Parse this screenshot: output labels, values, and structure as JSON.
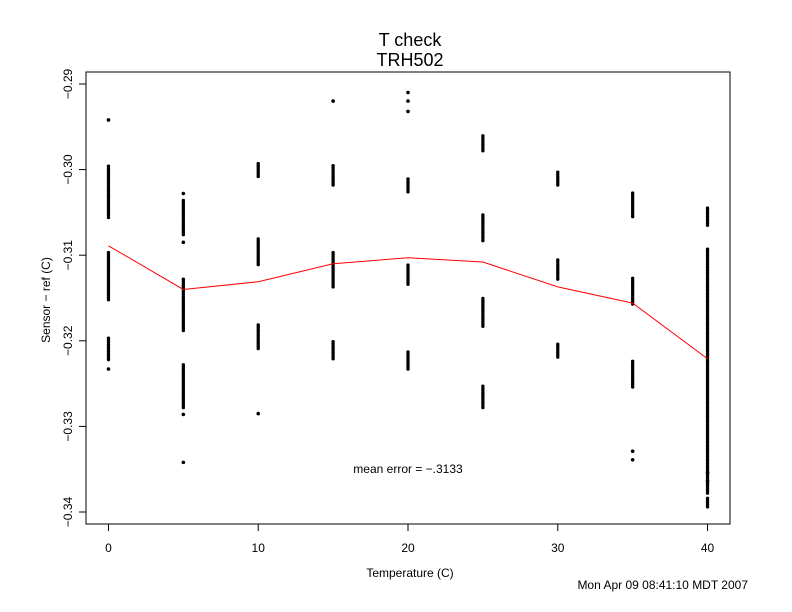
{
  "chart_data": {
    "type": "scatter",
    "title": "T check",
    "subtitle": "TRH502",
    "xlabel": "Temperature (C)",
    "ylabel": "Sensor − ref (C)",
    "xlim": [
      -1.5,
      41.5
    ],
    "ylim": [
      -0.3414,
      -0.2886
    ],
    "xticks": [
      0,
      10,
      20,
      30,
      40
    ],
    "xtick_labels": [
      "0",
      "10",
      "20",
      "30",
      "40"
    ],
    "yticks": [
      -0.29,
      -0.3,
      -0.31,
      -0.32,
      -0.33,
      -0.34
    ],
    "ytick_labels": [
      "−0.29",
      "−0.30",
      "−0.31",
      "−0.32",
      "−0.33",
      "−0.34"
    ],
    "grid": false,
    "legend": "none",
    "colors": {
      "points": "#000000",
      "mean_line": "#ff0000",
      "axes": "#000000"
    },
    "series": [
      {
        "kind": "points",
        "clusters": [
          {
            "x": 0,
            "ranges": [
              [
                -0.3056,
                -0.2996
              ],
              [
                -0.3152,
                -0.3096
              ],
              [
                -0.3222,
                -0.3195
              ]
            ],
            "points": [
              -0.2942,
              -0.3233
            ]
          },
          {
            "x": 5,
            "ranges": [
              [
                -0.3076,
                -0.3036
              ],
              [
                -0.3188,
                -0.3126
              ],
              [
                -0.3278,
                -0.3228
              ]
            ],
            "points": [
              -0.3028,
              -0.3085,
              -0.3286,
              -0.3342
            ]
          },
          {
            "x": 10,
            "ranges": [
              [
                -0.3008,
                -0.2992
              ],
              [
                -0.3111,
                -0.3081
              ],
              [
                -0.3209,
                -0.3181
              ]
            ],
            "points": [
              -0.3285
            ]
          },
          {
            "x": 15,
            "ranges": [
              [
                -0.3018,
                -0.2995
              ],
              [
                -0.3137,
                -0.3097
              ],
              [
                -0.3221,
                -0.3201
              ]
            ],
            "points": [
              -0.292
            ]
          },
          {
            "x": 20,
            "ranges": [
              [
                -0.3026,
                -0.3011
              ],
              [
                -0.3134,
                -0.311
              ],
              [
                -0.3233,
                -0.3211
              ]
            ],
            "points": [
              -0.291,
              -0.292,
              -0.2932
            ]
          },
          {
            "x": 25,
            "ranges": [
              [
                -0.2978,
                -0.2959
              ],
              [
                -0.3083,
                -0.3051
              ],
              [
                -0.3183,
                -0.3149
              ],
              [
                -0.3278,
                -0.3251
              ]
            ],
            "points": []
          },
          {
            "x": 30,
            "ranges": [
              [
                -0.3018,
                -0.3003
              ],
              [
                -0.3128,
                -0.3105
              ],
              [
                -0.3219,
                -0.3202
              ]
            ],
            "points": []
          },
          {
            "x": 35,
            "ranges": [
              [
                -0.3055,
                -0.3027
              ],
              [
                -0.3157,
                -0.3127
              ],
              [
                -0.3254,
                -0.3224
              ]
            ],
            "points": [
              -0.3329,
              -0.3339
            ]
          },
          {
            "x": 40,
            "ranges": [
              [
                -0.3065,
                -0.3045
              ],
              [
                -0.3092,
                -0.3378
              ],
              [
                -0.3394,
                -0.3382
              ]
            ],
            "points": [
              -0.3354,
              -0.3364
            ]
          }
        ]
      },
      {
        "kind": "line",
        "x": [
          0,
          5,
          10,
          15,
          20,
          25,
          30,
          35,
          40
        ],
        "y": [
          -0.3089,
          -0.314,
          -0.3131,
          -0.311,
          -0.3103,
          -0.3108,
          -0.3137,
          -0.3156,
          -0.3221
        ]
      }
    ],
    "annotations": [
      {
        "text": "mean error = −.3133",
        "x": 20,
        "y": -0.335
      }
    ]
  },
  "footer": {
    "timestamp": "Mon Apr 09 08:41:10 MDT 2007"
  }
}
